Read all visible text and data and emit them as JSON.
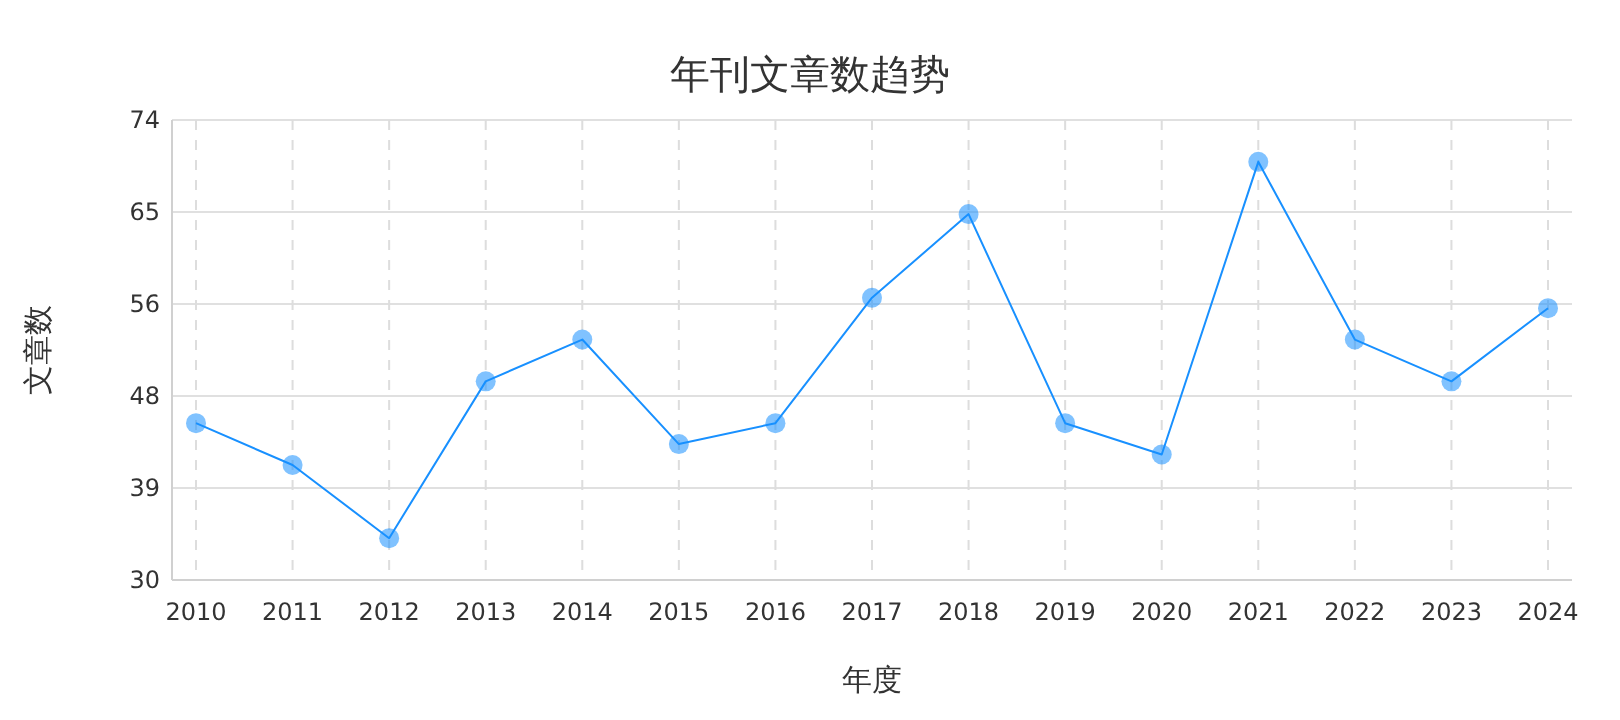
{
  "chart_data": {
    "type": "line",
    "title": "年刊文章数趋势",
    "xlabel": "年度",
    "ylabel": "文章数",
    "categories": [
      "2010",
      "2011",
      "2012",
      "2013",
      "2014",
      "2015",
      "2016",
      "2017",
      "2018",
      "2019",
      "2020",
      "2021",
      "2022",
      "2023",
      "2024"
    ],
    "series": [
      {
        "color": "#1890ff",
        "values": [
          45,
          41,
          34,
          49,
          53,
          43,
          45,
          57,
          65,
          45,
          42,
          70,
          53,
          49,
          56
        ]
      }
    ],
    "ylim": [
      30,
      74
    ],
    "yticks": [
      30,
      {
        "value": 38.8,
        "label": "39"
      },
      {
        "value": 47.6,
        "label": "48"
      },
      {
        "value": 56.4,
        "label": "56"
      },
      {
        "value": 65.2,
        "label": "65"
      },
      74
    ],
    "grid": true,
    "marker": "circle",
    "line_style": "solid"
  }
}
